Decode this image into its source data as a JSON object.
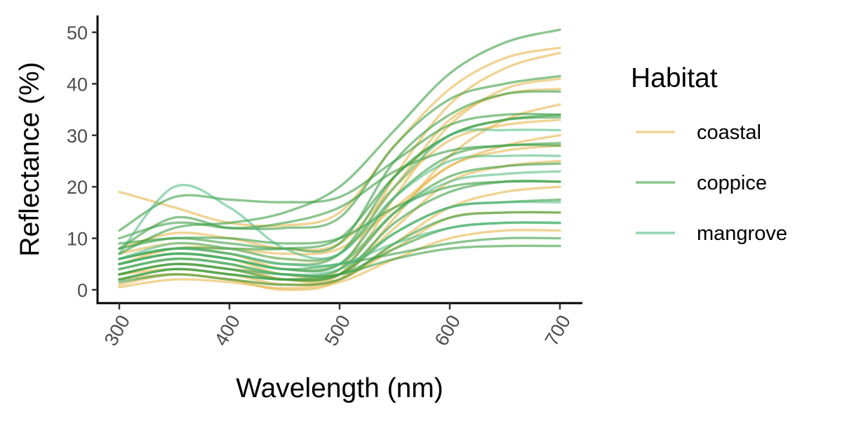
{
  "chart_data": {
    "type": "line",
    "title": "",
    "xlabel": "Wavelength (nm)",
    "ylabel": "Reflectance (%)",
    "xlim": [
      300,
      700
    ],
    "ylim": [
      -2.5,
      53
    ],
    "x_ticks": [
      300,
      400,
      500,
      600,
      700
    ],
    "y_ticks": [
      0,
      10,
      20,
      30,
      40,
      50
    ],
    "x_tick_labels": [
      "300",
      "400",
      "500",
      "600",
      "700"
    ],
    "y_tick_labels": [
      "0",
      "10",
      "20",
      "30",
      "40",
      "50"
    ],
    "grid": false,
    "legend": {
      "title": "Habitat",
      "position": "right",
      "items": [
        {
          "label": "coastal",
          "color": "#E6B84E"
        },
        {
          "label": "coppice",
          "color": "#3E9E45"
        },
        {
          "label": "mangrove",
          "color": "#49B87D"
        }
      ]
    },
    "x": [
      300,
      350,
      400,
      450,
      500,
      550,
      600,
      650,
      700
    ],
    "series": [
      {
        "group": "coastal",
        "color": "#E6B84E",
        "values": [
          19,
          16,
          13,
          12.5,
          15,
          28,
          39,
          45,
          47
        ]
      },
      {
        "group": "coastal",
        "color": "#E6B84E",
        "values": [
          5,
          7,
          6,
          3,
          4,
          22,
          36,
          43,
          46
        ]
      },
      {
        "group": "coastal",
        "color": "#E6B84E",
        "values": [
          3,
          5,
          4,
          2,
          3,
          18,
          32,
          39,
          41
        ]
      },
      {
        "group": "coastal",
        "color": "#E6B84E",
        "values": [
          7,
          9,
          8,
          6,
          7,
          20,
          33,
          38,
          39
        ]
      },
      {
        "group": "coastal",
        "color": "#E6B84E",
        "values": [
          2,
          3,
          2,
          0,
          2,
          14,
          26,
          33,
          36
        ]
      },
      {
        "group": "coastal",
        "color": "#E6B84E",
        "values": [
          6,
          8,
          7,
          4,
          5,
          15,
          24,
          27,
          28
        ]
      },
      {
        "group": "coastal",
        "color": "#E6B84E",
        "values": [
          4,
          6,
          5,
          2,
          3,
          12,
          21,
          24,
          25
        ]
      },
      {
        "group": "coastal",
        "color": "#E6B84E",
        "values": [
          1,
          3,
          2,
          1,
          2,
          9,
          16,
          19,
          20
        ]
      },
      {
        "group": "coastal",
        "color": "#E6B84E",
        "values": [
          3,
          4,
          3,
          1,
          2,
          8,
          14,
          15,
          15
        ]
      },
      {
        "group": "coastal",
        "color": "#E6B84E",
        "values": [
          0.5,
          2,
          1.5,
          0.3,
          1.5,
          6,
          10,
          11.5,
          11.5
        ]
      },
      {
        "group": "coastal",
        "color": "#E6B84E",
        "values": [
          8,
          11,
          10,
          8,
          9,
          20,
          29,
          32,
          33
        ]
      },
      {
        "group": "coastal",
        "color": "#E6B84E",
        "values": [
          5,
          8,
          8,
          7,
          8,
          16,
          24,
          28,
          30
        ]
      },
      {
        "group": "coppice",
        "color": "#3E9E45",
        "values": [
          7,
          12,
          13,
          15,
          20,
          31,
          42,
          48,
          50.5
        ]
      },
      {
        "group": "coppice",
        "color": "#3E9E45",
        "values": [
          10,
          13,
          12,
          12,
          14,
          28,
          37,
          40,
          41.5
        ]
      },
      {
        "group": "coppice",
        "color": "#3E9E45",
        "values": [
          11.5,
          18,
          17.5,
          17,
          18,
          25,
          32,
          34,
          34
        ]
      },
      {
        "group": "coppice",
        "color": "#3E9E45",
        "values": [
          8,
          10,
          9,
          8,
          9,
          25,
          34,
          38,
          38.5
        ]
      },
      {
        "group": "coppice",
        "color": "#3E9E45",
        "values": [
          6,
          8,
          7,
          5,
          7,
          22,
          30,
          33,
          33.5
        ]
      },
      {
        "group": "coppice",
        "color": "#3E9E45",
        "values": [
          5,
          7,
          6,
          4,
          5,
          18,
          26,
          28,
          28
        ]
      },
      {
        "group": "coppice",
        "color": "#3E9E45",
        "values": [
          4,
          6,
          5,
          3,
          4,
          15,
          22,
          24,
          24.5
        ]
      },
      {
        "group": "coppice",
        "color": "#3E9E45",
        "values": [
          3,
          5,
          4,
          2,
          3,
          13,
          19,
          21,
          21
        ]
      },
      {
        "group": "coppice",
        "color": "#3E9E45",
        "values": [
          2,
          4,
          3,
          2,
          3,
          11,
          16,
          17,
          17.5
        ]
      },
      {
        "group": "coppice",
        "color": "#3E9E45",
        "values": [
          1.5,
          3,
          2,
          1,
          2,
          9,
          14,
          15,
          15
        ]
      },
      {
        "group": "coppice",
        "color": "#3E9E45",
        "values": [
          3,
          5,
          4,
          3,
          3,
          8,
          12,
          13,
          13
        ]
      },
      {
        "group": "coppice",
        "color": "#3E9E45",
        "values": [
          2,
          4,
          3,
          2,
          3,
          6,
          8,
          8.5,
          8.5
        ]
      },
      {
        "group": "coppice",
        "color": "#3E9E45",
        "values": [
          5,
          7,
          6,
          4,
          5,
          7,
          9,
          10,
          10
        ]
      },
      {
        "group": "coppice",
        "color": "#3E9E45",
        "values": [
          9,
          10,
          10,
          9,
          10,
          16,
          20,
          21,
          21
        ]
      },
      {
        "group": "coppice",
        "color": "#3E9E45",
        "values": [
          8,
          14,
          12,
          13,
          16,
          23,
          27,
          28,
          28.5
        ]
      },
      {
        "group": "coppice",
        "color": "#3E9E45",
        "values": [
          6,
          8,
          8,
          8,
          10,
          22,
          30,
          33,
          34
        ]
      },
      {
        "group": "mangrove",
        "color": "#49B87D",
        "values": [
          7,
          20,
          16,
          8,
          7,
          20,
          30,
          31,
          31
        ]
      },
      {
        "group": "mangrove",
        "color": "#49B87D",
        "values": [
          6,
          9,
          8,
          6,
          7,
          18,
          25,
          26,
          26
        ]
      },
      {
        "group": "mangrove",
        "color": "#49B87D",
        "values": [
          5,
          7,
          6,
          4,
          5,
          15,
          21,
          22.5,
          23
        ]
      },
      {
        "group": "mangrove",
        "color": "#49B87D",
        "values": [
          4,
          6,
          5,
          3,
          4,
          11,
          16,
          17,
          17
        ]
      },
      {
        "group": "mangrove",
        "color": "#49B87D",
        "values": [
          6,
          8,
          7,
          5,
          5,
          9,
          12,
          13,
          13
        ]
      }
    ]
  }
}
